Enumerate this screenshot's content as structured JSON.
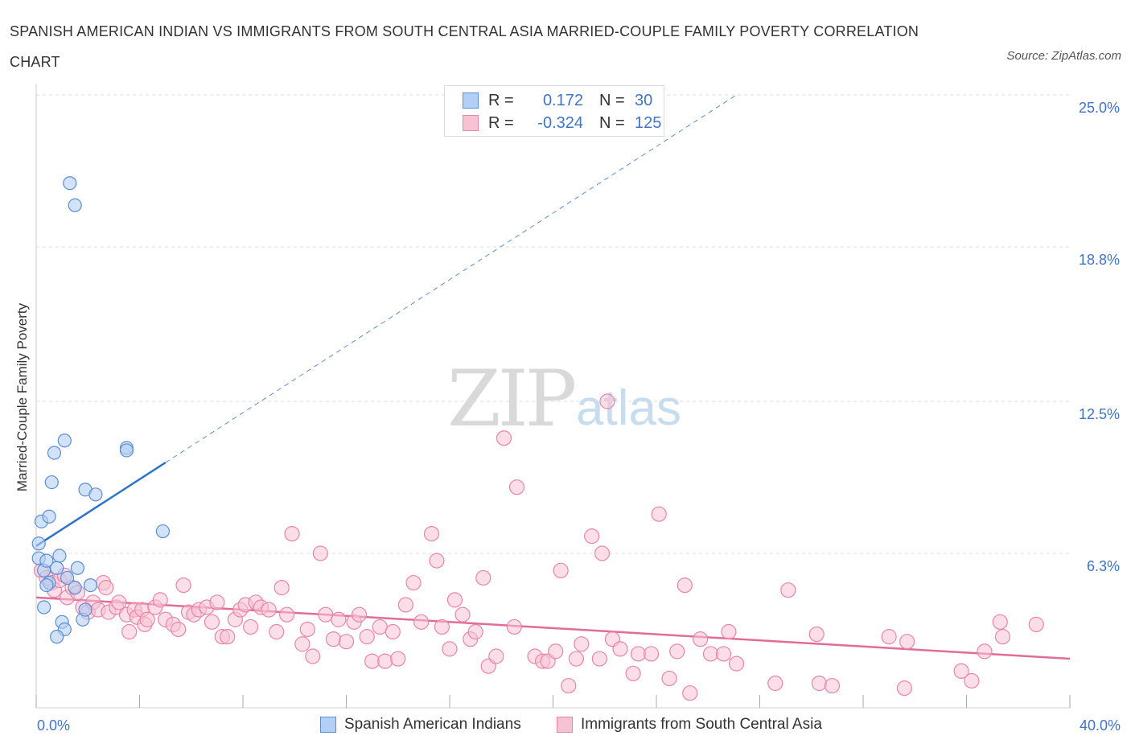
{
  "title": "SPANISH AMERICAN INDIAN VS IMMIGRANTS FROM SOUTH CENTRAL ASIA MARRIED-COUPLE FAMILY POVERTY CORRELATION CHART",
  "source": "Source: ZipAtlas.com",
  "watermark": {
    "zip": "ZIP",
    "atlas": "atlas"
  },
  "legend": {
    "r_label": "R =",
    "n_label": "N =",
    "series1": {
      "r": "0.172",
      "n": "30"
    },
    "series2": {
      "r": "-0.324",
      "n": "125"
    }
  },
  "colors": {
    "blue_fill": "#b3cff5",
    "blue_stroke": "#5b8ed6",
    "blue_line": "#2f72cc",
    "pink_fill": "#f7c3d3",
    "pink_stroke": "#e985a8",
    "pink_line": "#e36b98",
    "grid": "#dddddd",
    "axis_label": "#3f74c9"
  },
  "chart_data": {
    "type": "scatter",
    "title": "SPANISH AMERICAN INDIAN VS IMMIGRANTS FROM SOUTH CENTRAL ASIA MARRIED-COUPLE FAMILY POVERTY CORRELATION CHART",
    "xlabel": "",
    "ylabel": "Married-Couple Family Poverty",
    "xlim": [
      0,
      40
    ],
    "ylim": [
      0,
      25
    ],
    "x_tick_labels": [
      "0.0%",
      "40.0%"
    ],
    "y_ticks": [
      6.3,
      12.5,
      18.8,
      25.0
    ],
    "y_tick_labels": [
      "6.3%",
      "12.5%",
      "18.8%",
      "25.0%"
    ],
    "grid": true,
    "series": [
      {
        "name": "Spanish American Indians",
        "r": 0.172,
        "n": 30,
        "trend": {
          "x": [
            0,
            5
          ],
          "y": [
            6.6,
            10.0
          ],
          "extended_dashed_to": [
            27.1,
            25.0
          ]
        },
        "points": [
          [
            0.1,
            6.7
          ],
          [
            0.2,
            7.6
          ],
          [
            0.1,
            6.1
          ],
          [
            0.3,
            5.6
          ],
          [
            0.4,
            6.0
          ],
          [
            0.5,
            7.8
          ],
          [
            0.6,
            9.2
          ],
          [
            0.7,
            10.4
          ],
          [
            1.1,
            10.9
          ],
          [
            1.3,
            21.4
          ],
          [
            1.5,
            20.5
          ],
          [
            1.9,
            8.9
          ],
          [
            2.3,
            8.7
          ],
          [
            3.5,
            10.6
          ],
          [
            3.5,
            10.5
          ],
          [
            4.9,
            7.2
          ],
          [
            0.9,
            6.2
          ],
          [
            0.8,
            5.7
          ],
          [
            1.2,
            5.3
          ],
          [
            0.5,
            5.1
          ],
          [
            1.6,
            5.7
          ],
          [
            2.1,
            5.0
          ],
          [
            0.3,
            4.1
          ],
          [
            1.0,
            3.5
          ],
          [
            1.1,
            3.2
          ],
          [
            0.8,
            2.9
          ],
          [
            1.8,
            3.6
          ],
          [
            1.9,
            4.0
          ],
          [
            1.5,
            4.9
          ],
          [
            0.4,
            5.0
          ]
        ]
      },
      {
        "name": "Immigrants from South Central Asia",
        "r": -0.324,
        "n": 125,
        "trend": {
          "x": [
            0,
            40
          ],
          "y": [
            4.5,
            2.0
          ]
        },
        "points": [
          [
            0.2,
            5.6
          ],
          [
            0.4,
            5.3
          ],
          [
            0.6,
            5.1
          ],
          [
            0.7,
            4.8
          ],
          [
            0.9,
            5.2
          ],
          [
            1.1,
            5.4
          ],
          [
            1.2,
            4.5
          ],
          [
            1.4,
            4.9
          ],
          [
            1.6,
            4.7
          ],
          [
            1.8,
            4.1
          ],
          [
            2.0,
            3.9
          ],
          [
            2.2,
            4.3
          ],
          [
            2.4,
            4.0
          ],
          [
            2.6,
            5.1
          ],
          [
            2.7,
            4.9
          ],
          [
            2.8,
            3.9
          ],
          [
            3.1,
            4.1
          ],
          [
            3.2,
            4.3
          ],
          [
            3.5,
            3.8
          ],
          [
            3.6,
            3.1
          ],
          [
            3.8,
            4.0
          ],
          [
            3.9,
            3.7
          ],
          [
            4.1,
            4.0
          ],
          [
            4.2,
            3.4
          ],
          [
            4.3,
            3.6
          ],
          [
            4.6,
            4.1
          ],
          [
            4.8,
            4.4
          ],
          [
            5.0,
            3.6
          ],
          [
            5.3,
            3.4
          ],
          [
            5.5,
            3.2
          ],
          [
            5.7,
            5.0
          ],
          [
            5.9,
            3.9
          ],
          [
            6.1,
            3.8
          ],
          [
            6.3,
            4.0
          ],
          [
            6.6,
            4.1
          ],
          [
            6.8,
            3.5
          ],
          [
            7.0,
            4.3
          ],
          [
            7.2,
            2.9
          ],
          [
            7.4,
            2.9
          ],
          [
            7.7,
            3.6
          ],
          [
            7.9,
            4.0
          ],
          [
            8.1,
            4.2
          ],
          [
            8.3,
            3.3
          ],
          [
            8.5,
            4.3
          ],
          [
            8.7,
            4.1
          ],
          [
            9.0,
            4.0
          ],
          [
            9.3,
            3.1
          ],
          [
            9.5,
            4.9
          ],
          [
            9.7,
            3.8
          ],
          [
            9.9,
            7.1
          ],
          [
            10.3,
            2.6
          ],
          [
            10.5,
            3.2
          ],
          [
            10.7,
            2.1
          ],
          [
            11.0,
            6.3
          ],
          [
            11.2,
            3.8
          ],
          [
            11.5,
            2.8
          ],
          [
            11.7,
            3.6
          ],
          [
            12.0,
            2.7
          ],
          [
            12.3,
            3.5
          ],
          [
            12.5,
            3.8
          ],
          [
            12.8,
            2.9
          ],
          [
            13.0,
            1.9
          ],
          [
            13.3,
            3.3
          ],
          [
            13.5,
            1.9
          ],
          [
            13.8,
            3.1
          ],
          [
            14.0,
            2.0
          ],
          [
            14.3,
            4.2
          ],
          [
            14.6,
            5.1
          ],
          [
            14.9,
            3.5
          ],
          [
            15.3,
            7.1
          ],
          [
            15.5,
            6.0
          ],
          [
            15.7,
            3.3
          ],
          [
            16.0,
            2.4
          ],
          [
            16.2,
            4.4
          ],
          [
            16.5,
            3.8
          ],
          [
            16.8,
            2.8
          ],
          [
            17.0,
            3.1
          ],
          [
            17.3,
            5.3
          ],
          [
            17.5,
            1.7
          ],
          [
            17.8,
            2.1
          ],
          [
            18.1,
            11.0
          ],
          [
            18.5,
            3.3
          ],
          [
            18.6,
            9.0
          ],
          [
            19.3,
            2.1
          ],
          [
            19.6,
            1.9
          ],
          [
            19.8,
            1.9
          ],
          [
            20.1,
            2.3
          ],
          [
            20.3,
            5.6
          ],
          [
            20.6,
            0.9
          ],
          [
            20.9,
            2.0
          ],
          [
            21.1,
            2.6
          ],
          [
            21.5,
            7.0
          ],
          [
            21.9,
            6.3
          ],
          [
            21.8,
            2.0
          ],
          [
            22.1,
            12.5
          ],
          [
            22.3,
            2.8
          ],
          [
            22.6,
            2.4
          ],
          [
            23.1,
            1.4
          ],
          [
            23.3,
            2.2
          ],
          [
            23.8,
            2.2
          ],
          [
            24.1,
            7.9
          ],
          [
            24.5,
            1.2
          ],
          [
            24.8,
            2.3
          ],
          [
            25.1,
            5.0
          ],
          [
            25.3,
            0.6
          ],
          [
            25.7,
            2.8
          ],
          [
            26.1,
            2.2
          ],
          [
            26.6,
            2.2
          ],
          [
            26.8,
            3.1
          ],
          [
            27.1,
            1.8
          ],
          [
            28.6,
            1.0
          ],
          [
            29.1,
            4.8
          ],
          [
            30.3,
            1.0
          ],
          [
            30.8,
            0.9
          ],
          [
            30.2,
            3.0
          ],
          [
            33.6,
            0.8
          ],
          [
            33.0,
            2.9
          ],
          [
            33.7,
            2.7
          ],
          [
            35.8,
            1.5
          ],
          [
            36.2,
            1.1
          ],
          [
            36.7,
            2.3
          ],
          [
            37.3,
            3.5
          ],
          [
            37.4,
            2.9
          ],
          [
            38.7,
            3.4
          ]
        ]
      }
    ]
  },
  "bottom_legend": {
    "series1": "Spanish American Indians",
    "series2": "Immigrants from South Central Asia"
  }
}
